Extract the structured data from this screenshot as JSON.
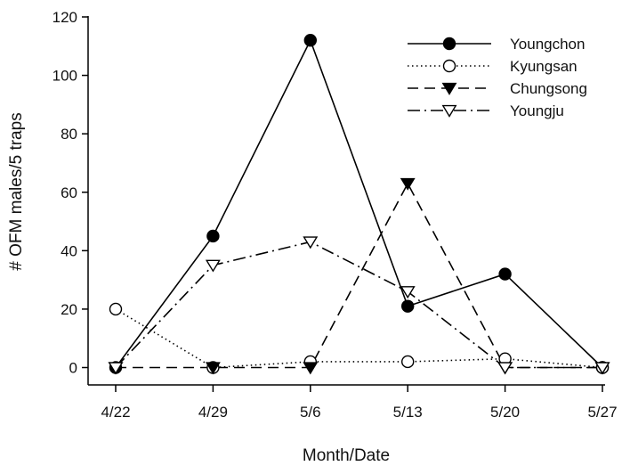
{
  "chart_data": {
    "type": "line",
    "title": "",
    "xlabel": "Month/Date",
    "ylabel": "# OFM males/5 traps",
    "categories": [
      "4/22",
      "4/29",
      "5/6",
      "5/13",
      "5/20",
      "5/27"
    ],
    "ylim": [
      0,
      120
    ],
    "yticks": [
      0,
      20,
      40,
      60,
      80,
      100,
      120
    ],
    "grid": false,
    "legend_position": "top-right",
    "series": [
      {
        "name": "Youngchon",
        "marker": "filled-circle",
        "line_style": "solid",
        "color": "#000000",
        "values": [
          0,
          45,
          112,
          21,
          32,
          0
        ]
      },
      {
        "name": "Kyungsan",
        "marker": "open-circle",
        "line_style": "dotted",
        "color": "#000000",
        "values": [
          20,
          0,
          2,
          2,
          3,
          0
        ]
      },
      {
        "name": "Chungsong",
        "marker": "filled-triangle-down",
        "line_style": "dashed",
        "color": "#000000",
        "values": [
          0,
          0,
          0,
          63,
          0,
          0
        ]
      },
      {
        "name": "Youngju",
        "marker": "open-triangle-down",
        "line_style": "dash-dot",
        "color": "#000000",
        "values": [
          0,
          35,
          43,
          26,
          0,
          0
        ]
      }
    ]
  }
}
